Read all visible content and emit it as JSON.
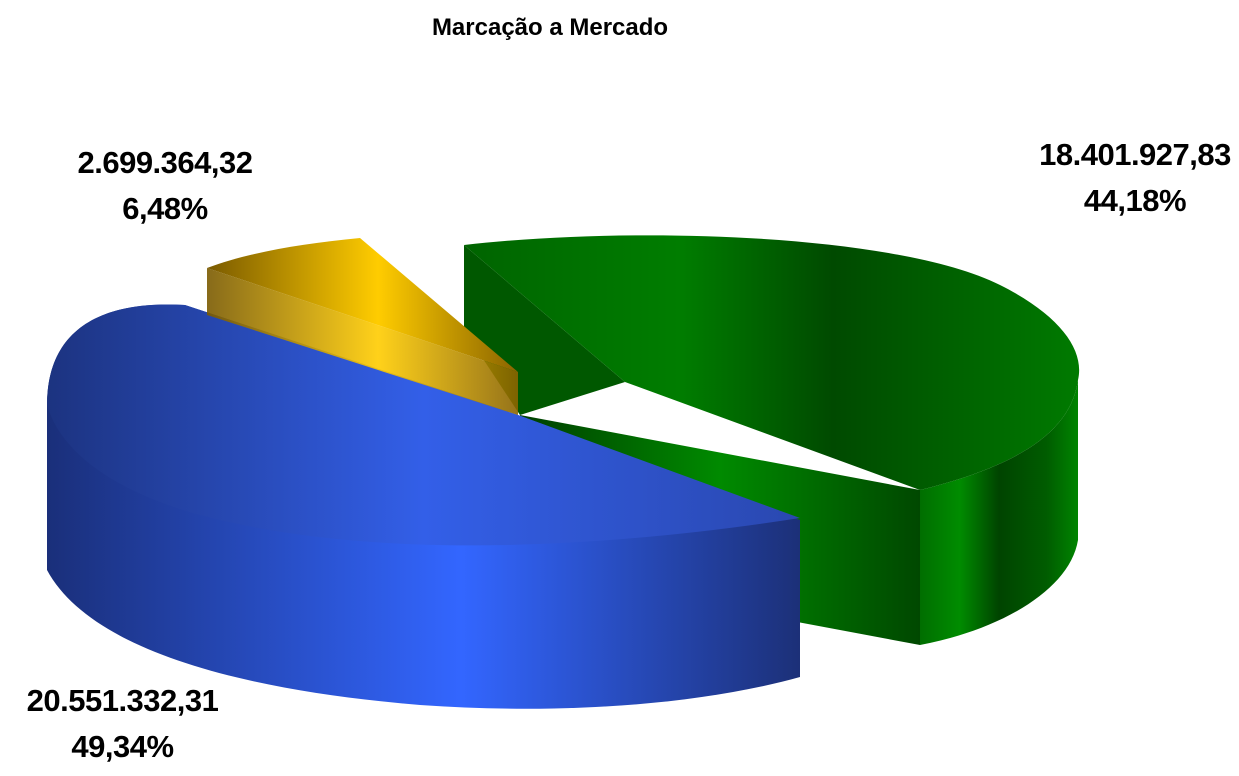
{
  "chart_data": {
    "type": "pie",
    "title": "Marcação a Mercado",
    "slices": [
      {
        "value_label": "18.401.927,83",
        "percent_label": "44,18%",
        "value": 18401927.83,
        "percent": 44.18,
        "color": "#007a00"
      },
      {
        "value_label": "20.551.332,31",
        "percent_label": "49,34%",
        "value": 20551332.31,
        "percent": 49.34,
        "color": "#2f5ff0"
      },
      {
        "value_label": "2.699.364,32",
        "percent_label": "6,48%",
        "value": 2699364.32,
        "percent": 6.48,
        "color": "#f2c400"
      }
    ],
    "style": "3d-exploded"
  }
}
